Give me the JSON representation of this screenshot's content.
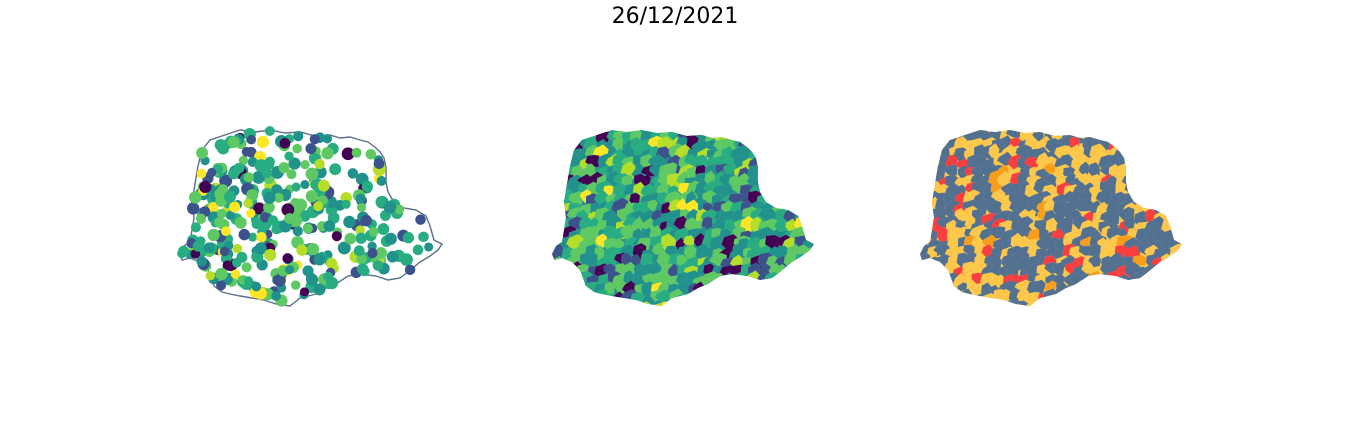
{
  "figure": {
    "title": "26/12/2021"
  },
  "colors": {
    "background": "#ffffff",
    "outline": "#5b6f8c",
    "viridis": [
      "#440154",
      "#3b528b",
      "#21918c",
      "#27ad81",
      "#5ec962",
      "#b5de2b",
      "#fde725"
    ],
    "categorical": {
      "base": "#52708f",
      "yellow": "#fdc84a",
      "red": "#f83f3f",
      "orange": "#f99e1c"
    }
  },
  "panels": [
    {
      "name": "points",
      "kind": "scatter-on-outline"
    },
    {
      "name": "choropleth-continuous",
      "kind": "filled-municipalities"
    },
    {
      "name": "choropleth-categorical",
      "kind": "filled-municipalities"
    }
  ]
}
